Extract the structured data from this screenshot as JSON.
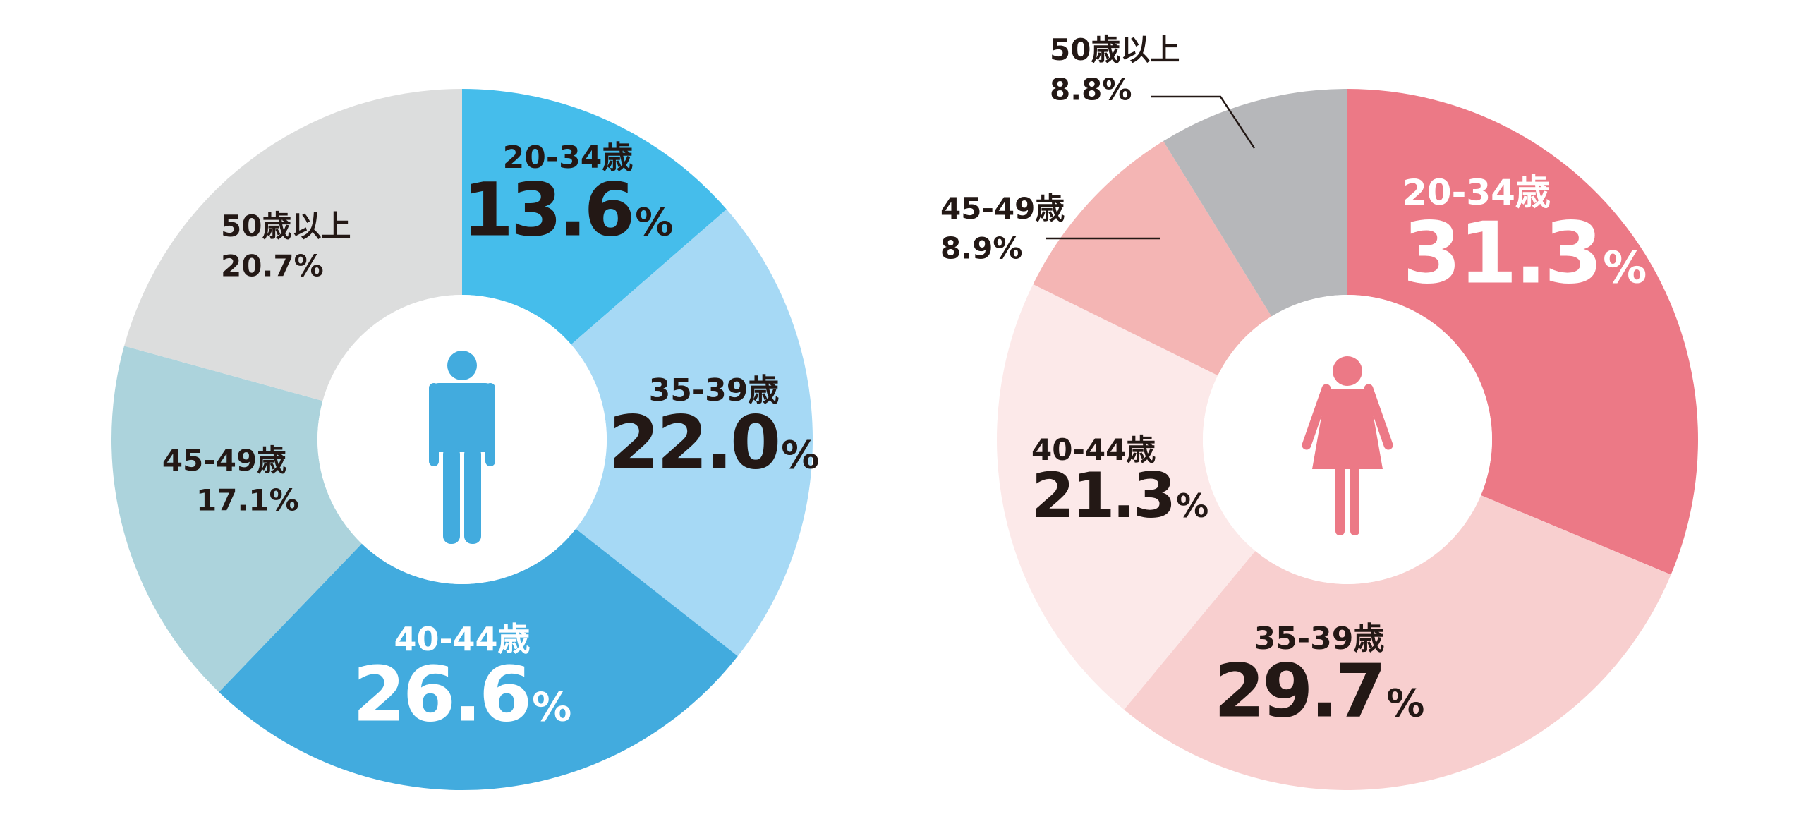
{
  "chart_data": [
    {
      "type": "pie",
      "variant": "donut",
      "icon": "male-icon",
      "start_angle": "12 o'clock",
      "direction": "clockwise",
      "slices": [
        {
          "label": "20-34歳",
          "value": 13.6,
          "value_text": "13.6",
          "unit": "%",
          "color": "#45BDEB",
          "label_color": "#231815",
          "emphasis": "large"
        },
        {
          "label": "35-39歳",
          "value": 22.0,
          "value_text": "22.0",
          "unit": "%",
          "color": "#A6D9F5",
          "label_color": "#231815",
          "emphasis": "large"
        },
        {
          "label": "40-44歳",
          "value": 26.6,
          "value_text": "26.6",
          "unit": "%",
          "color": "#42ABDE",
          "label_color": "#FFFFFF",
          "emphasis": "large"
        },
        {
          "label": "45-49歳",
          "value": 17.1,
          "value_text": "17.1",
          "unit": "%",
          "color": "#ACD3DC",
          "label_color": "#231815",
          "emphasis": "small"
        },
        {
          "label": "50歳以上",
          "value": 20.7,
          "value_text": "20.7",
          "unit": "%",
          "color": "#DCDDDD",
          "label_color": "#231815",
          "emphasis": "small"
        }
      ]
    },
    {
      "type": "pie",
      "variant": "donut",
      "icon": "female-icon",
      "start_angle": "12 o'clock",
      "direction": "clockwise",
      "slices": [
        {
          "label": "20-34歳",
          "value": 31.3,
          "value_text": "31.3",
          "unit": "%",
          "color": "#EC7986",
          "label_color": "#FFFFFF",
          "emphasis": "large"
        },
        {
          "label": "35-39歳",
          "value": 29.7,
          "value_text": "29.7",
          "unit": "%",
          "color": "#F8CFCF",
          "label_color": "#231815",
          "emphasis": "large"
        },
        {
          "label": "40-44歳",
          "value": 21.3,
          "value_text": "21.3",
          "unit": "%",
          "color": "#FCE9E9",
          "label_color": "#231815",
          "emphasis": "large"
        },
        {
          "label": "45-49歳",
          "value": 8.9,
          "value_text": "8.9",
          "unit": "%",
          "color": "#F4B5B4",
          "label_color": "#231815",
          "emphasis": "small",
          "callout": true
        },
        {
          "label": "50歳以上",
          "value": 8.8,
          "value_text": "8.8",
          "unit": "%",
          "color": "#B6B7BA",
          "label_color": "#231815",
          "emphasis": "small",
          "callout": true
        }
      ]
    }
  ]
}
